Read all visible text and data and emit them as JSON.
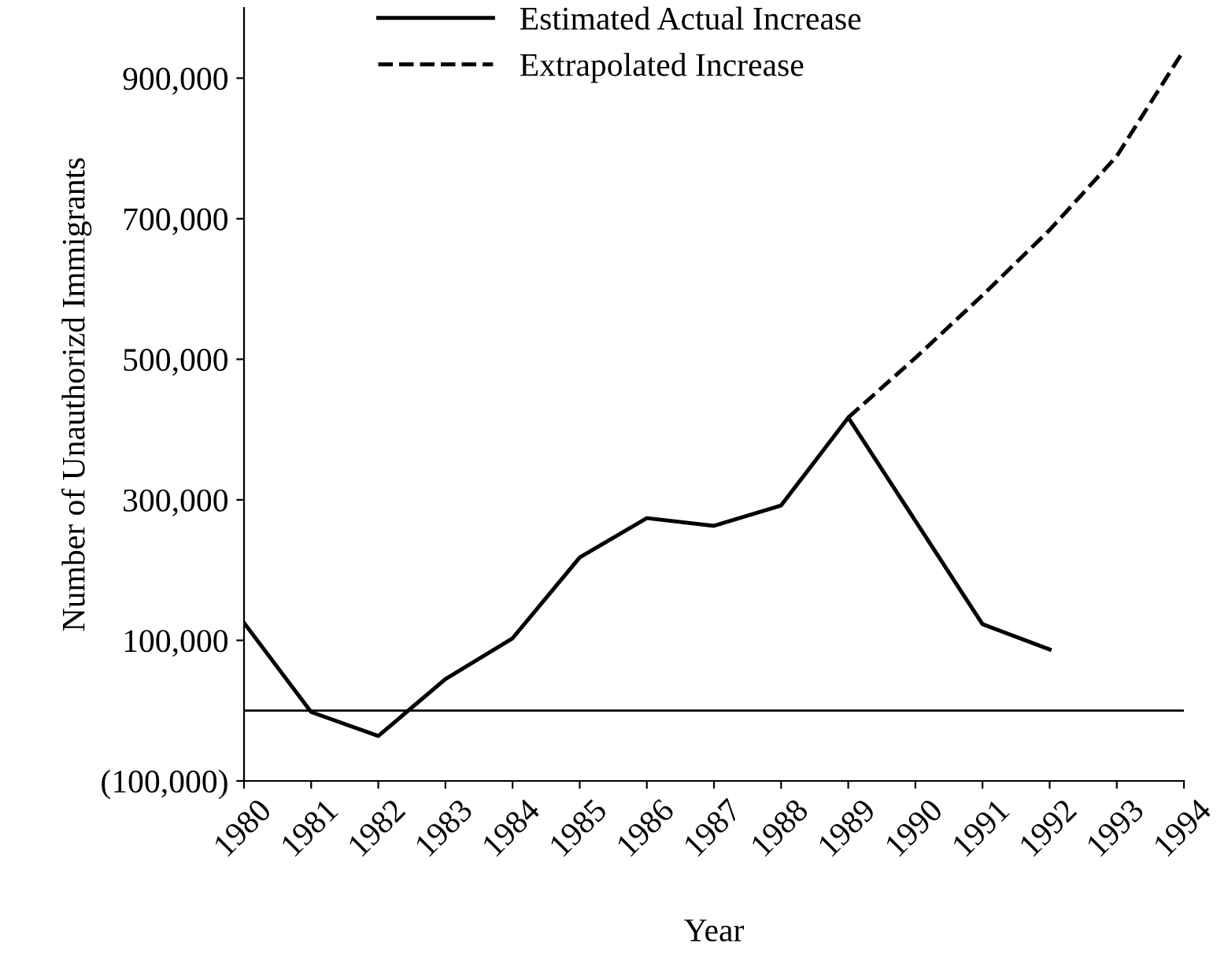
{
  "chart_data": {
    "type": "line",
    "xlabel": "Year",
    "ylabel": "Number of Unauthorizd Immigrants",
    "x": [
      1980,
      1981,
      1982,
      1983,
      1984,
      1985,
      1986,
      1987,
      1988,
      1989,
      1990,
      1991,
      1992
    ],
    "series": [
      {
        "name": "Estimated Actual Increase",
        "color": "#000000",
        "line_style": "solid",
        "values": [
          125000,
          -2000,
          -36000,
          45000,
          103000,
          218000,
          274000,
          263000,
          292000,
          417000,
          270000,
          123000,
          87000
        ]
      },
      {
        "name": "Extrapolated Increase",
        "color": "#000000",
        "line_style": "dashed",
        "x": [
          1989,
          1990,
          1991,
          1992,
          1993,
          1994
        ],
        "values": [
          417000,
          502000,
          591000,
          684000,
          789000,
          940000
        ]
      }
    ],
    "xlim": [
      1980,
      1994
    ],
    "xticks": [
      1980,
      1981,
      1982,
      1983,
      1984,
      1985,
      1986,
      1987,
      1988,
      1989,
      1990,
      1991,
      1992,
      1993,
      1994
    ],
    "ylim": [
      -100000,
      1000000
    ],
    "yticks": [
      {
        "value": -100000,
        "label": "(100,000)"
      },
      {
        "value": 100000,
        "label": "100,000"
      },
      {
        "value": 300000,
        "label": "300,000"
      },
      {
        "value": 500000,
        "label": "500,000"
      },
      {
        "value": 700000,
        "label": "700,000"
      },
      {
        "value": 900000,
        "label": "900,000"
      }
    ],
    "ref_lines": [
      {
        "axis": "y",
        "value": 0,
        "color": "#000000",
        "line_style": "solid"
      }
    ],
    "grid": false,
    "legend": "top",
    "marker": "none"
  }
}
